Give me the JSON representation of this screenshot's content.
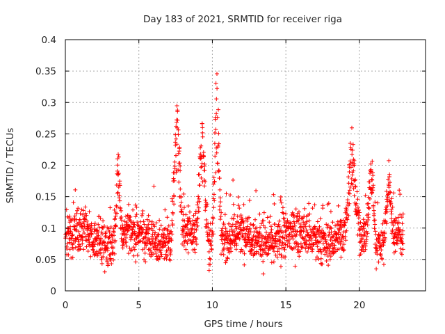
{
  "chart_data": {
    "type": "scatter",
    "title": "Day 183 of 2021, SRMTID for receiver riga",
    "xlabel": "GPS time / hours",
    "ylabel": "SRMTID / TECUs",
    "xlim": [
      0,
      24.5
    ],
    "ylim": [
      0,
      0.4
    ],
    "x_ticks": [
      0,
      5,
      10,
      15,
      20
    ],
    "x_tick_labels": [
      "0",
      "5",
      "10",
      "15",
      "20"
    ],
    "y_ticks": [
      0,
      0.05,
      0.1,
      0.15,
      0.2,
      0.25,
      0.3,
      0.35,
      0.4
    ],
    "y_tick_labels": [
      "0",
      "0.05",
      "0.1",
      "0.15",
      "0.2",
      "0.25",
      "0.3",
      "0.35",
      "0.4"
    ],
    "grid": true,
    "marker": "+",
    "color": "#ff0000",
    "series": [
      {
        "name": "SRMTID",
        "generator": {
          "x_range": [
            0,
            23.0
          ],
          "count": 1900,
          "baseline": 0.085,
          "spread": 0.035,
          "bursts": [
            {
              "t": 3.6,
              "width": 0.15,
              "peak": 0.24
            },
            {
              "t": 7.6,
              "width": 0.25,
              "peak": 0.3
            },
            {
              "t": 9.3,
              "width": 0.25,
              "peak": 0.27
            },
            {
              "t": 10.3,
              "width": 0.2,
              "peak": 0.36
            },
            {
              "t": 19.5,
              "width": 0.3,
              "peak": 0.26
            },
            {
              "t": 20.8,
              "width": 0.2,
              "peak": 0.24
            },
            {
              "t": 22.0,
              "width": 0.2,
              "peak": 0.21
            }
          ]
        }
      }
    ]
  }
}
